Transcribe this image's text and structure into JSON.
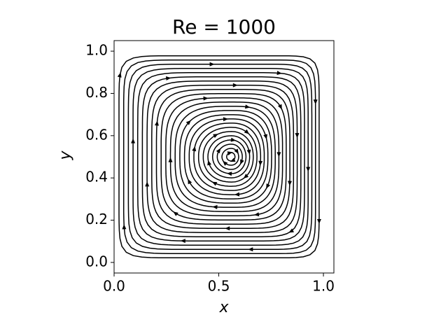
{
  "chart_data": {
    "type": "streamplot",
    "title": "Re = 1000",
    "xlabel": "x",
    "ylabel": "y",
    "xlim": [
      0,
      1.05
    ],
    "ylim": [
      -0.05,
      1.05
    ],
    "xticks": [
      {
        "value": 0,
        "label": "0.0"
      },
      0.5,
      {
        "value": 1,
        "label": "1.0"
      }
    ],
    "yticks": [
      {
        "value": 0,
        "label": "0.0"
      },
      0.2,
      0.4,
      0.6,
      0.8,
      {
        "value": 1,
        "label": "1.0"
      }
    ],
    "color": "#000000"
  }
}
